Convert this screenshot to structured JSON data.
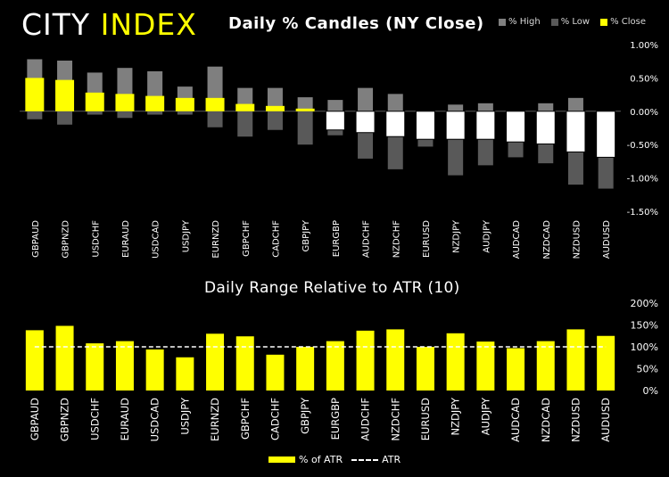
{
  "header": {
    "logo_part1": "CITY",
    "logo_part2": "INDEX",
    "title": "Daily % Candles (NY Close)",
    "legend": [
      {
        "label": "% High",
        "color": "#808080"
      },
      {
        "label": "% Low",
        "color": "#595959"
      },
      {
        "label": "% Close",
        "color": "#ffff00"
      }
    ]
  },
  "colors": {
    "positive_close": "#ffff00",
    "negative_close": "#ffffff",
    "negative_border": "#000000",
    "high": "#7f7f7f",
    "low": "#595959",
    "atr_bar": "#ffff00",
    "atr_line": "#ffffff"
  },
  "chart_data": [
    {
      "type": "bar",
      "title": "Daily % Candles (NY Close)",
      "categories": [
        "GBPAUD",
        "GBPNZD",
        "USDCHF",
        "EURAUD",
        "USDCAD",
        "USDJPY",
        "EURNZD",
        "GBPCHF",
        "CADCHF",
        "GBPJPY",
        "EURGBP",
        "AUDCHF",
        "NZDCHF",
        "EURUSD",
        "NZDJPY",
        "AUDJPY",
        "AUDCAD",
        "NZDCAD",
        "NZDUSD",
        "AUDUSD"
      ],
      "series": [
        {
          "name": "% High",
          "values": [
            0.78,
            0.76,
            0.58,
            0.65,
            0.6,
            0.37,
            0.67,
            0.35,
            0.35,
            0.21,
            0.17,
            0.35,
            0.26,
            0.0,
            0.1,
            0.12,
            0.0,
            0.12,
            0.2,
            0.0
          ]
        },
        {
          "name": "% Low",
          "values": [
            -0.12,
            -0.2,
            -0.05,
            -0.1,
            -0.05,
            -0.05,
            -0.24,
            -0.38,
            -0.28,
            -0.5,
            -0.36,
            -0.71,
            -0.87,
            -0.53,
            -0.96,
            -0.81,
            -0.69,
            -0.78,
            -1.1,
            -1.16
          ]
        },
        {
          "name": "% Close",
          "values": [
            0.5,
            0.47,
            0.28,
            0.26,
            0.23,
            0.2,
            0.2,
            0.11,
            0.08,
            0.04,
            -0.28,
            -0.32,
            -0.38,
            -0.42,
            -0.42,
            -0.42,
            -0.46,
            -0.49,
            -0.61,
            -0.69
          ]
        }
      ],
      "yticks": [
        "1.00%",
        "0.50%",
        "0.00%",
        "-0.50%",
        "-1.00%",
        "-1.50%"
      ],
      "ylim": [
        -1.5,
        1.0
      ],
      "legend": "top-right"
    },
    {
      "type": "bar",
      "title": "Daily Range Relative to ATR (10)",
      "categories": [
        "GBPAUD",
        "GBPNZD",
        "USDCHF",
        "EURAUD",
        "USDCAD",
        "USDJPY",
        "EURNZD",
        "GBPCHF",
        "CADCHF",
        "GBPJPY",
        "EURGBP",
        "AUDCHF",
        "NZDCHF",
        "EURUSD",
        "NZDJPY",
        "AUDJPY",
        "AUDCAD",
        "NZDCAD",
        "NZDUSD",
        "AUDUSD"
      ],
      "series": [
        {
          "name": "% of ATR",
          "values": [
            138,
            148,
            108,
            113,
            94,
            76,
            130,
            124,
            82,
            100,
            113,
            137,
            140,
            100,
            131,
            112,
            97,
            113,
            140,
            125
          ]
        },
        {
          "name": "ATR",
          "values": [
            100,
            100,
            100,
            100,
            100,
            100,
            100,
            100,
            100,
            100,
            100,
            100,
            100,
            100,
            100,
            100,
            100,
            100,
            100,
            100
          ]
        }
      ],
      "yticks": [
        "200%",
        "150%",
        "100%",
        "50%",
        "0%"
      ],
      "ylim": [
        0,
        200
      ],
      "legend": "bottom"
    }
  ],
  "footer": {
    "legend_bar": "% of ATR",
    "legend_line": "ATR"
  }
}
